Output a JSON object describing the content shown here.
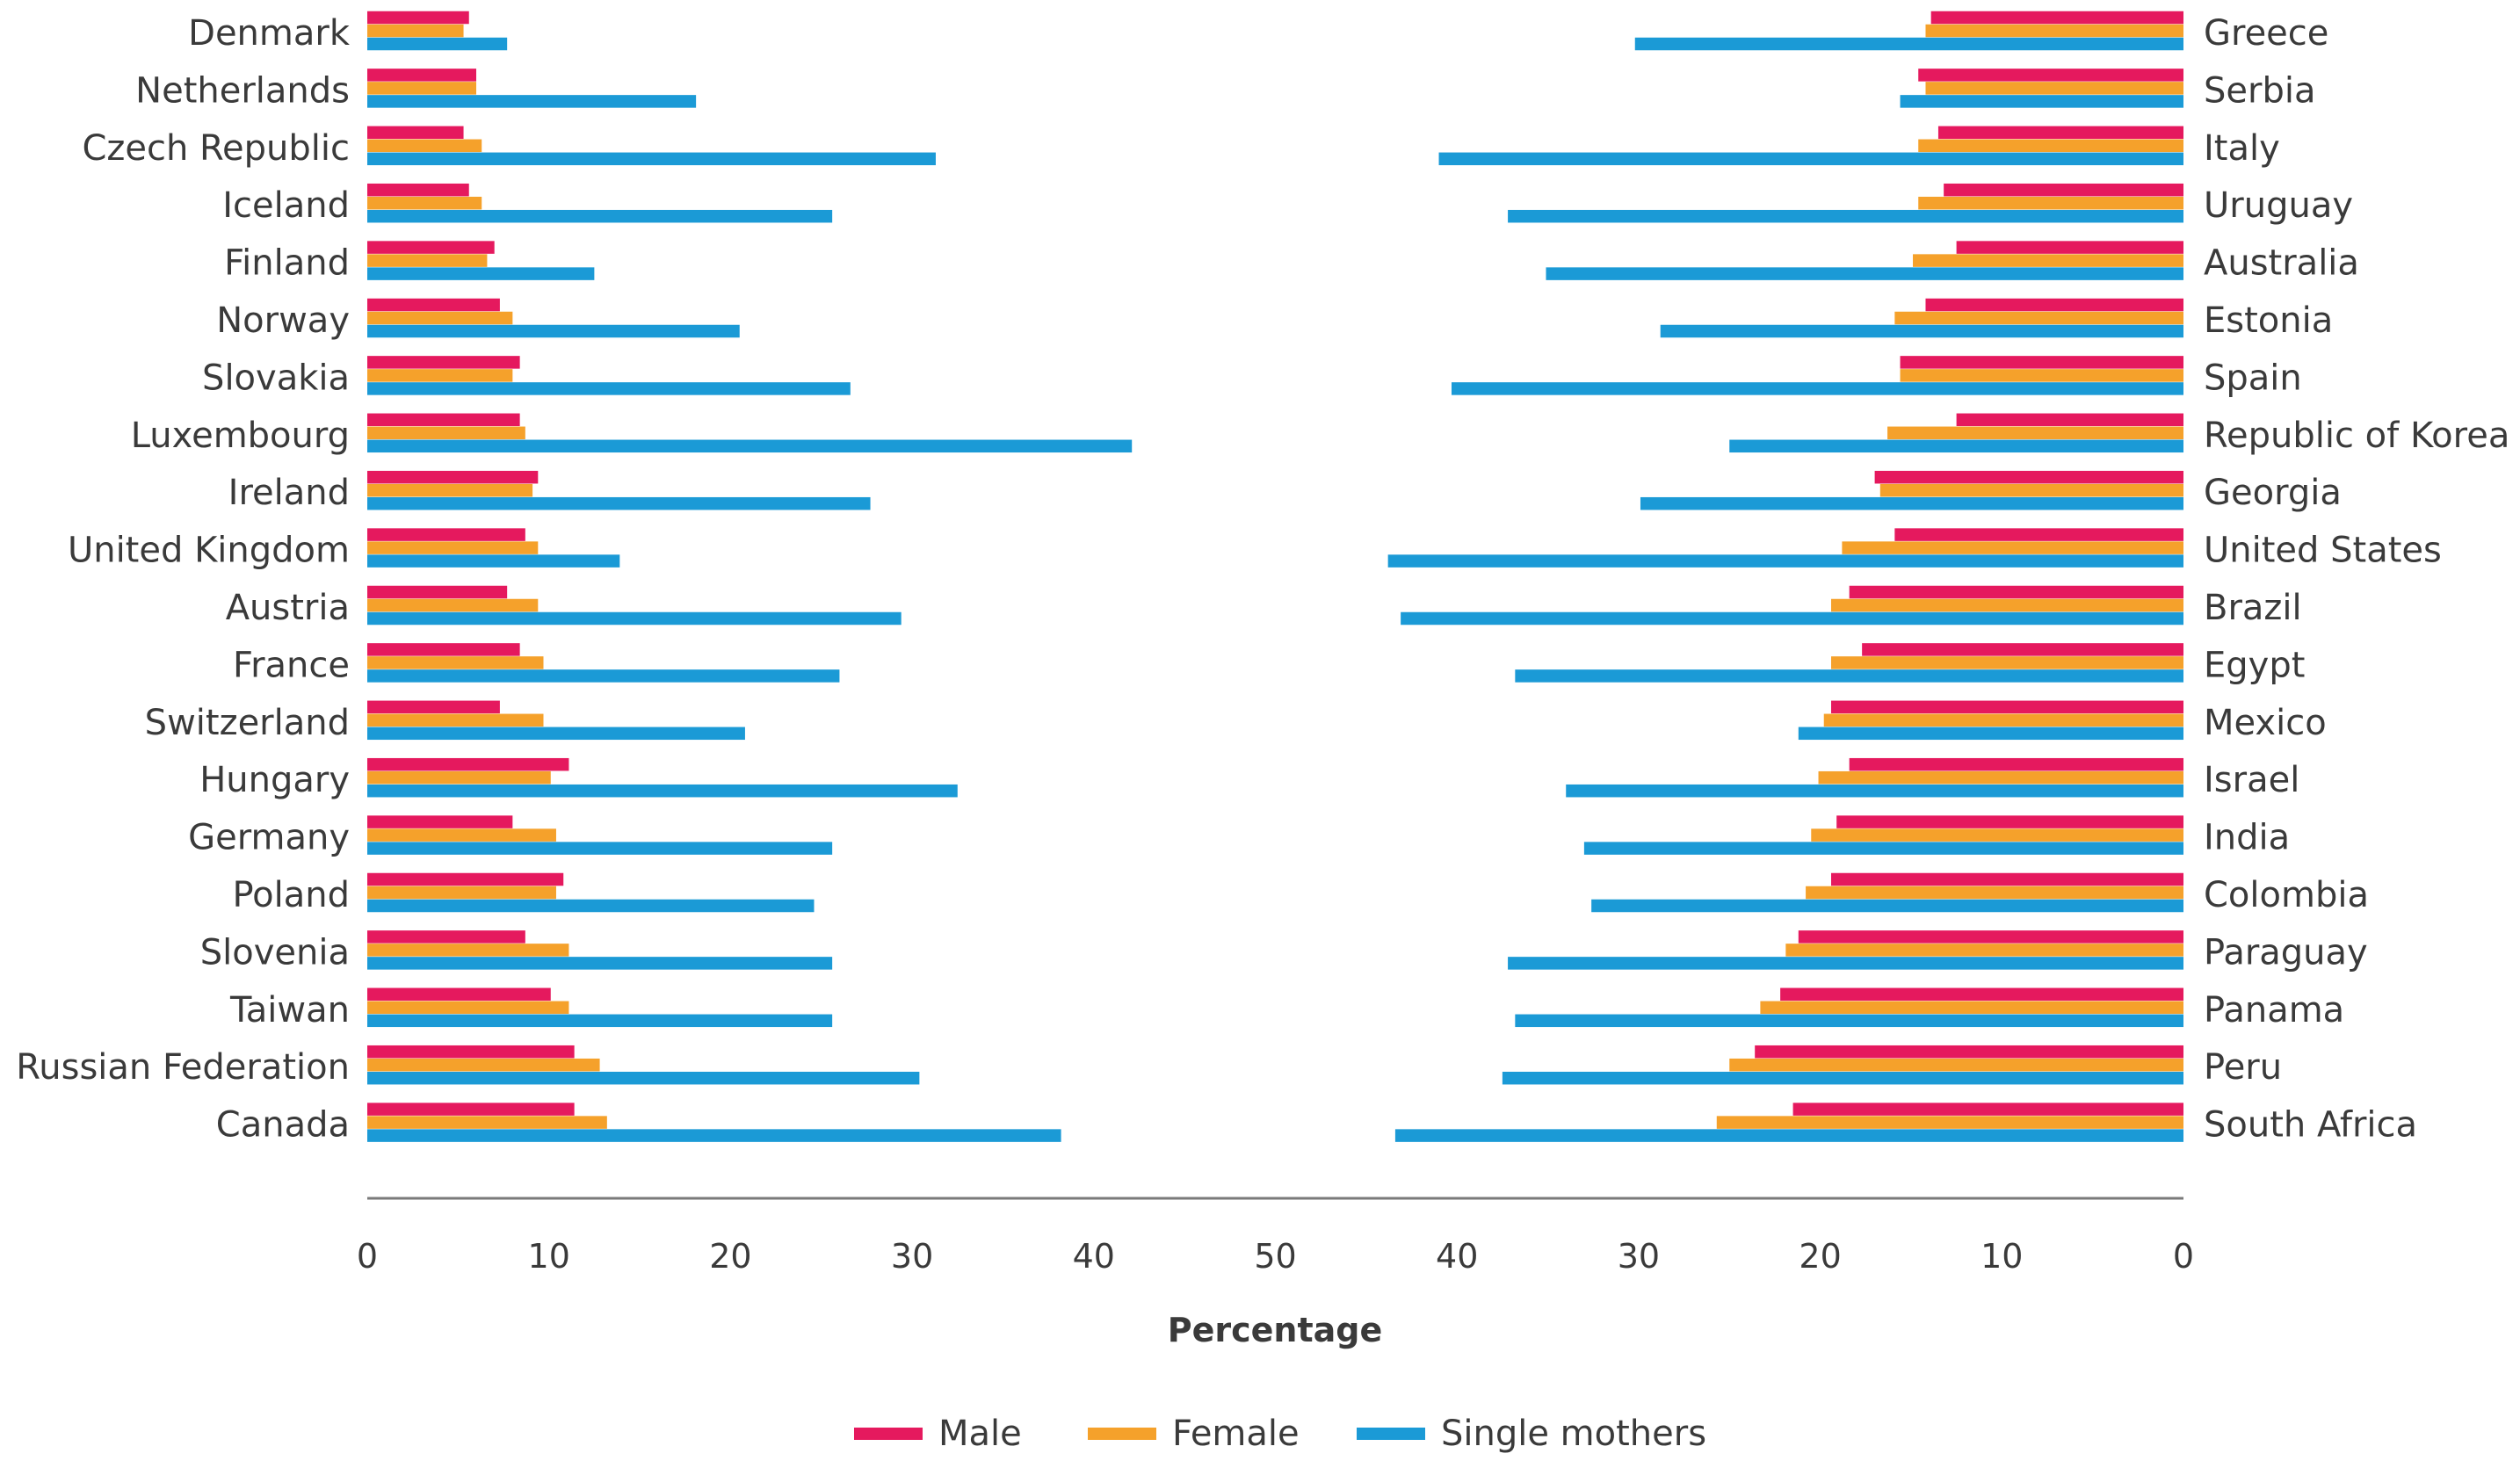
{
  "chart_data": {
    "type": "bar",
    "orientation": "horizontal",
    "xlabel": "Percentage",
    "xlim": [
      0,
      100
    ],
    "ticks": {
      "left": [
        "0",
        "10",
        "20",
        "30",
        "40",
        "50"
      ],
      "right": [
        "40",
        "30",
        "20",
        "10",
        "0"
      ]
    },
    "legend": {
      "placement": "bottom",
      "entries": [
        {
          "key": "male",
          "label": "Male",
          "color": "#E5195E"
        },
        {
          "key": "female",
          "label": "Female",
          "color": "#F5A12B"
        },
        {
          "key": "single",
          "label": "Single mothers",
          "color": "#1B9AD6"
        }
      ]
    },
    "left_panel": {
      "countries": [
        "Denmark",
        "Netherlands",
        "Czech Republic",
        "Iceland",
        "Finland",
        "Norway",
        "Slovakia",
        "Luxembourg",
        "Ireland",
        "United Kingdom",
        "Austria",
        "France",
        "Switzerland",
        "Hungary",
        "Germany",
        "Poland",
        "Slovenia",
        "Taiwan",
        "Russian Federation",
        "Canada"
      ],
      "series": [
        {
          "name": "Male",
          "values": [
            5.6,
            6.0,
            5.3,
            5.6,
            7.0,
            7.3,
            8.4,
            8.4,
            9.4,
            8.7,
            7.7,
            8.4,
            7.3,
            11.1,
            8.0,
            10.8,
            8.7,
            10.1,
            11.4,
            11.4
          ]
        },
        {
          "name": "Female",
          "values": [
            5.3,
            6.0,
            6.3,
            6.3,
            6.6,
            8.0,
            8.0,
            8.7,
            9.1,
            9.4,
            9.4,
            9.7,
            9.7,
            10.1,
            10.4,
            10.4,
            11.1,
            11.1,
            12.8,
            13.2
          ]
        },
        {
          "name": "Single mothers",
          "values": [
            7.7,
            18.1,
            31.3,
            25.6,
            12.5,
            20.5,
            26.6,
            42.1,
            27.7,
            13.9,
            29.4,
            26.0,
            20.8,
            32.5,
            25.6,
            24.6,
            25.6,
            25.6,
            30.4,
            38.2
          ]
        }
      ]
    },
    "right_panel": {
      "countries": [
        "Greece",
        "Serbia",
        "Italy",
        "Uruguay",
        "Australia",
        "Estonia",
        "Spain",
        "Republic of Korea",
        "Georgia",
        "United States",
        "Brazil",
        "Egypt",
        "Mexico",
        "Israel",
        "India",
        "Colombia",
        "Paraguay",
        "Panama",
        "Peru",
        "South Africa"
      ],
      "series": [
        {
          "name": "Male",
          "values": [
            13.9,
            14.6,
            13.5,
            13.2,
            12.5,
            14.2,
            15.6,
            12.5,
            17.0,
            15.9,
            18.4,
            17.7,
            19.4,
            18.4,
            19.1,
            19.4,
            21.2,
            22.2,
            23.6,
            21.5
          ]
        },
        {
          "name": "Female",
          "values": [
            14.2,
            14.2,
            14.6,
            14.6,
            14.9,
            15.9,
            15.6,
            16.3,
            16.7,
            18.8,
            19.4,
            19.4,
            19.8,
            20.1,
            20.5,
            20.8,
            21.9,
            23.3,
            25.0,
            25.7
          ]
        },
        {
          "name": "Single mothers",
          "values": [
            30.2,
            15.6,
            41.0,
            37.2,
            35.1,
            28.8,
            40.3,
            25.0,
            29.9,
            43.8,
            43.1,
            36.8,
            21.2,
            34.0,
            33.0,
            32.6,
            37.2,
            36.8,
            37.5,
            43.4
          ]
        }
      ]
    }
  }
}
